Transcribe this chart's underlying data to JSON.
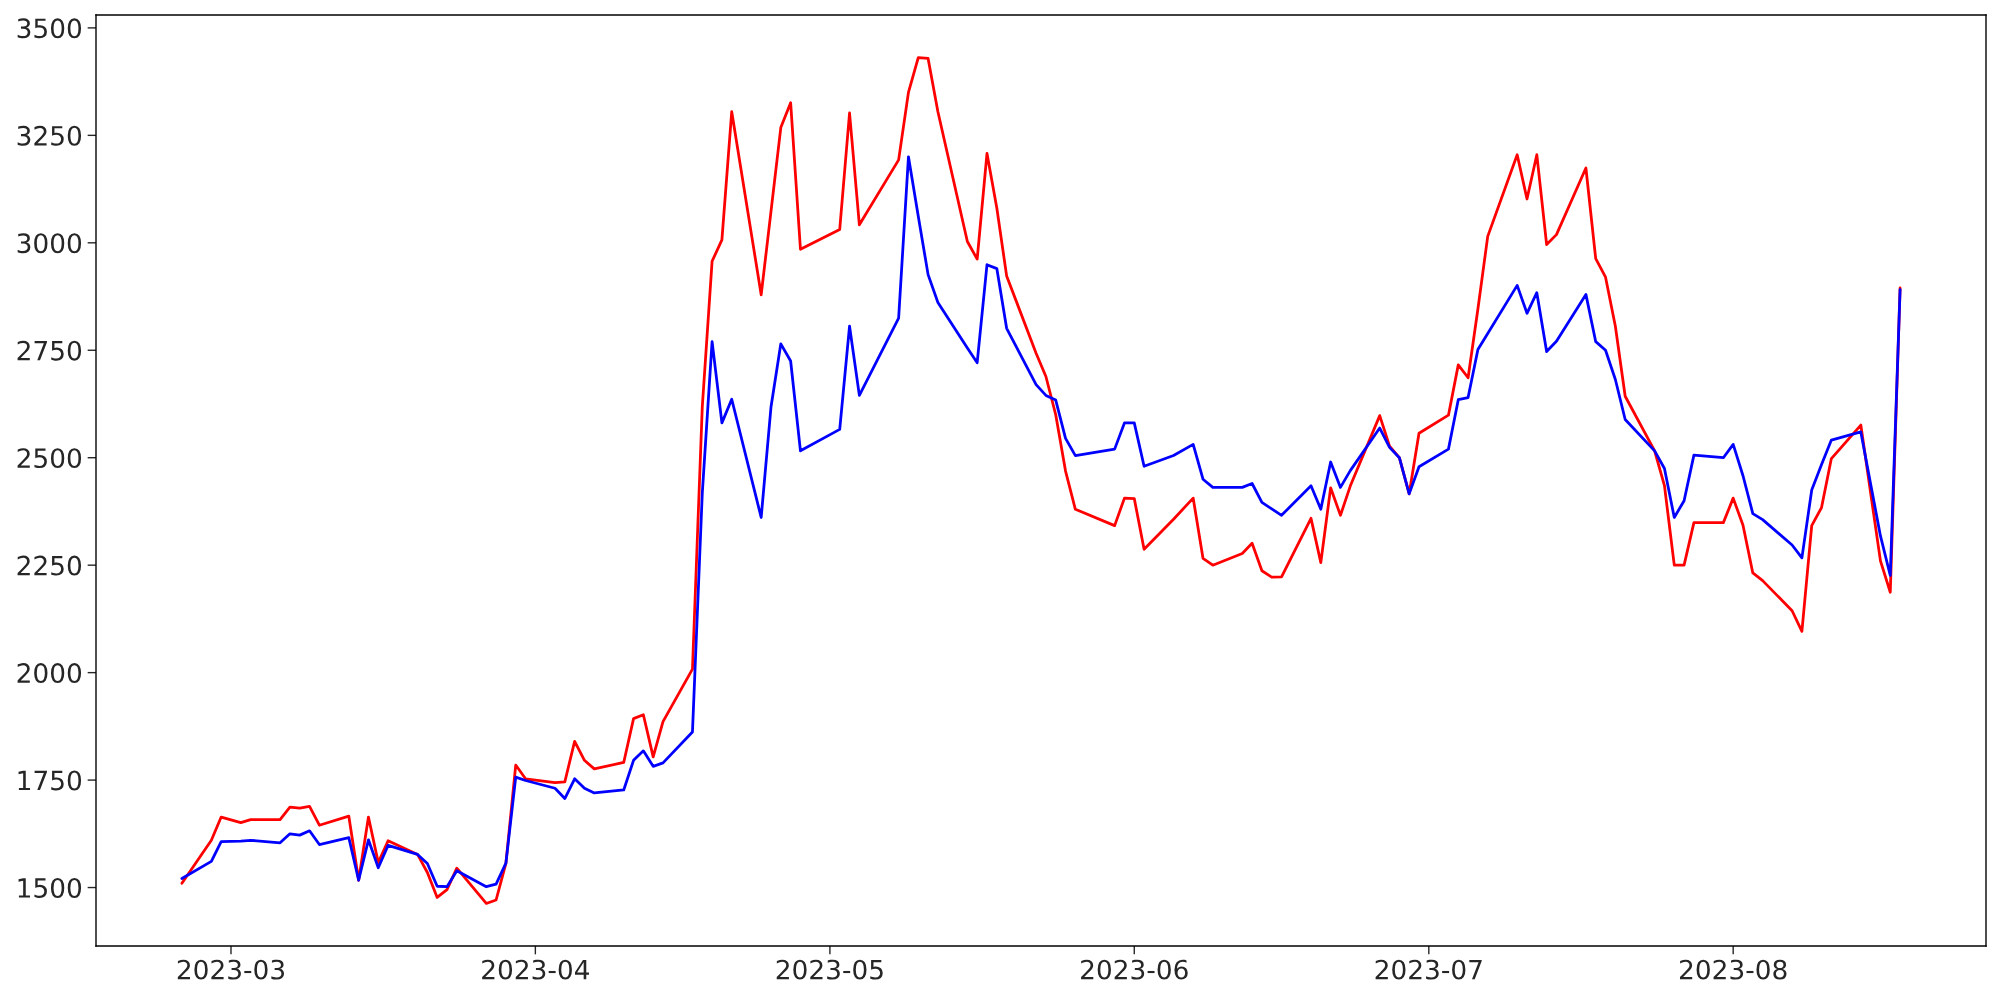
{
  "chart_data": {
    "type": "line",
    "x": [
      "2023-02-24",
      "2023-02-27",
      "2023-02-28",
      "2023-03-02",
      "2023-03-03",
      "2023-03-06",
      "2023-03-07",
      "2023-03-08",
      "2023-03-09",
      "2023-03-10",
      "2023-03-13",
      "2023-03-14",
      "2023-03-15",
      "2023-03-16",
      "2023-03-17",
      "2023-03-20",
      "2023-03-21",
      "2023-03-22",
      "2023-03-23",
      "2023-03-24",
      "2023-03-27",
      "2023-03-28",
      "2023-03-29",
      "2023-03-30",
      "2023-03-31",
      "2023-04-03",
      "2023-04-04",
      "2023-04-05",
      "2023-04-06",
      "2023-04-07",
      "2023-04-10",
      "2023-04-11",
      "2023-04-12",
      "2023-04-13",
      "2023-04-14",
      "2023-04-17",
      "2023-04-18",
      "2023-04-19",
      "2023-04-20",
      "2023-04-21",
      "2023-04-24",
      "2023-04-25",
      "2023-04-26",
      "2023-04-27",
      "2023-04-28",
      "2023-05-02",
      "2023-05-03",
      "2023-05-04",
      "2023-05-08",
      "2023-05-09",
      "2023-05-10",
      "2023-05-11",
      "2023-05-12",
      "2023-05-15",
      "2023-05-16",
      "2023-05-17",
      "2023-05-18",
      "2023-05-19",
      "2023-05-22",
      "2023-05-23",
      "2023-05-24",
      "2023-05-25",
      "2023-05-26",
      "2023-05-30",
      "2023-05-31",
      "2023-06-01",
      "2023-06-02",
      "2023-06-05",
      "2023-06-07",
      "2023-06-08",
      "2023-06-09",
      "2023-06-12",
      "2023-06-13",
      "2023-06-14",
      "2023-06-15",
      "2023-06-16",
      "2023-06-19",
      "2023-06-20",
      "2023-06-21",
      "2023-06-22",
      "2023-06-23",
      "2023-06-26",
      "2023-06-27",
      "2023-06-28",
      "2023-06-29",
      "2023-06-30",
      "2023-07-03",
      "2023-07-04",
      "2023-07-05",
      "2023-07-06",
      "2023-07-07",
      "2023-07-10",
      "2023-07-11",
      "2023-07-12",
      "2023-07-13",
      "2023-07-14",
      "2023-07-17",
      "2023-07-18",
      "2023-07-19",
      "2023-07-20",
      "2023-07-21",
      "2023-07-24",
      "2023-07-25",
      "2023-07-26",
      "2023-07-27",
      "2023-07-28",
      "2023-07-31",
      "2023-08-01",
      "2023-08-02",
      "2023-08-03",
      "2023-08-04",
      "2023-08-07",
      "2023-08-08",
      "2023-08-09",
      "2023-08-10",
      "2023-08-11",
      "2023-08-14",
      "2023-08-16",
      "2023-08-17",
      "2023-08-18"
    ],
    "series": [
      {
        "color": "#ff0000",
        "values": [
          1510,
          1610,
          1664,
          1651,
          1658,
          1658,
          1687,
          1685,
          1689,
          1645,
          1666,
          1517,
          1664,
          1558,
          1609,
          1577,
          1535,
          1477,
          1495,
          1545,
          1463,
          1471,
          1556,
          1785,
          1753,
          1744,
          1746,
          1840,
          1796,
          1776,
          1791,
          1893,
          1902,
          1804,
          1886,
          2008,
          2618,
          2957,
          3007,
          3305,
          2879,
          3073,
          3268,
          3326,
          2985,
          3031,
          3302,
          3042,
          3193,
          3350,
          3431,
          3429,
          3305,
          3003,
          2962,
          3208,
          3081,
          2923,
          2743,
          2689,
          2600,
          2469,
          2380,
          2342,
          2406,
          2405,
          2287,
          2357,
          2406,
          2266,
          2250,
          2277,
          2301,
          2237,
          2222,
          2223,
          2359,
          2256,
          2430,
          2366,
          2434,
          2598,
          2527,
          2500,
          2416,
          2557,
          2599,
          2716,
          2686,
          2846,
          3015,
          3205,
          3102,
          3205,
          2996,
          3019,
          3174,
          2963,
          2920,
          2806,
          2643,
          2516,
          2435,
          2250,
          2250,
          2349,
          2349,
          2406,
          2343,
          2232,
          2214,
          2144,
          2096,
          2342,
          2384,
          2498,
          2576,
          2260,
          2187,
          2895
        ]
      },
      {
        "color": "#0000ff",
        "values": [
          1521,
          1561,
          1607,
          1608,
          1610,
          1604,
          1625,
          1622,
          1632,
          1600,
          1616,
          1517,
          1611,
          1546,
          1598,
          1577,
          1556,
          1503,
          1502,
          1539,
          1502,
          1508,
          1557,
          1757,
          1749,
          1731,
          1707,
          1753,
          1731,
          1720,
          1727,
          1796,
          1818,
          1782,
          1790,
          1862,
          2417,
          2770,
          2581,
          2636,
          2361,
          2618,
          2765,
          2725,
          2516,
          2566,
          2806,
          2645,
          2825,
          3200,
          3062,
          2926,
          2861,
          2755,
          2721,
          2949,
          2940,
          2801,
          2670,
          2645,
          2634,
          2545,
          2505,
          2520,
          2581,
          2581,
          2480,
          2505,
          2531,
          2450,
          2431,
          2431,
          2440,
          2396,
          2381,
          2366,
          2435,
          2380,
          2490,
          2431,
          2470,
          2569,
          2524,
          2500,
          2416,
          2479,
          2520,
          2635,
          2640,
          2752,
          2789,
          2901,
          2836,
          2884,
          2747,
          2771,
          2880,
          2770,
          2750,
          2682,
          2589,
          2516,
          2475,
          2361,
          2400,
          2506,
          2500,
          2531,
          2458,
          2370,
          2356,
          2297,
          2267,
          2425,
          2484,
          2541,
          2560,
          2318,
          2226,
          2891
        ]
      }
    ],
    "xlim": [
      "2023-02-15T06:00",
      "2023-08-26T18:00"
    ],
    "xticks": [
      {
        "value": "2023-03-01",
        "label": "2023-03"
      },
      {
        "value": "2023-04-01",
        "label": "2023-04"
      },
      {
        "value": "2023-05-01",
        "label": "2023-05"
      },
      {
        "value": "2023-06-01",
        "label": "2023-06"
      },
      {
        "value": "2023-07-01",
        "label": "2023-07"
      },
      {
        "value": "2023-08-01",
        "label": "2023-08"
      }
    ],
    "ylim": [
      1364,
      3530
    ],
    "yticks": [
      1500,
      1750,
      2000,
      2250,
      2500,
      2750,
      3000,
      3250,
      3500
    ],
    "grid": false,
    "marker": "none",
    "line_style": "solid"
  }
}
